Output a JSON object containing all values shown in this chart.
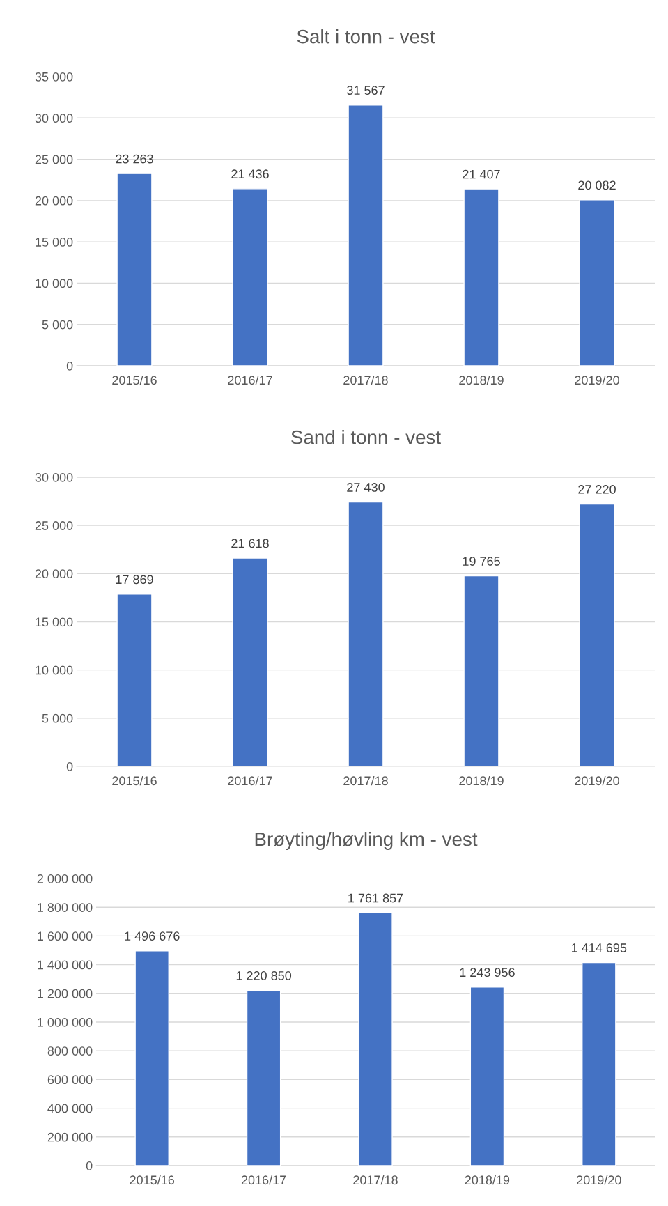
{
  "chart_data": [
    {
      "type": "bar",
      "title": "Salt i tonn - vest",
      "categories": [
        "2015/16",
        "2016/17",
        "2017/18",
        "2018/19",
        "2019/20"
      ],
      "values": [
        23263,
        21436,
        31567,
        21407,
        20082
      ],
      "color": "#4472c4",
      "value_labels": [
        "23 263",
        "21 436",
        "31 567",
        "21 407",
        "20 082"
      ],
      "ylim": [
        0,
        35000
      ],
      "yticks": [
        0,
        {
          "value": 5000,
          "label": "5 000"
        },
        {
          "value": 10000,
          "label": "10 000"
        },
        {
          "value": 15000,
          "label": "15 000"
        },
        {
          "value": 20000,
          "label": "20 000"
        },
        {
          "value": 25000,
          "label": "25 000"
        },
        {
          "value": 30000,
          "label": "30 000"
        },
        {
          "value": 35000,
          "label": "35 000"
        }
      ],
      "grid": "y"
    },
    {
      "type": "bar",
      "title": "Sand i tonn - vest",
      "categories": [
        "2015/16",
        "2016/17",
        "2017/18",
        "2018/19",
        "2019/20"
      ],
      "values": [
        17869,
        21618,
        27430,
        19765,
        27220
      ],
      "color": "#4472c4",
      "value_labels": [
        "17 869",
        "21 618",
        "27 430",
        "19 765",
        "27 220"
      ],
      "ylim": [
        0,
        30000
      ],
      "yticks": [
        0,
        {
          "value": 5000,
          "label": "5 000"
        },
        {
          "value": 10000,
          "label": "10 000"
        },
        {
          "value": 15000,
          "label": "15 000"
        },
        {
          "value": 20000,
          "label": "20 000"
        },
        {
          "value": 25000,
          "label": "25 000"
        },
        {
          "value": 30000,
          "label": "30 000"
        }
      ],
      "grid": "y"
    },
    {
      "type": "bar",
      "title": "Brøyting/høvling km - vest",
      "categories": [
        "2015/16",
        "2016/17",
        "2017/18",
        "2018/19",
        "2019/20"
      ],
      "values": [
        1496676,
        1220850,
        1761857,
        1243956,
        1414695
      ],
      "color": "#4472c4",
      "value_labels": [
        "1 496 676",
        "1 220 850",
        "1 761 857",
        "1 243 956",
        "1 414 695"
      ],
      "ylim": [
        0,
        2000000
      ],
      "yticks": [
        0,
        {
          "value": 200000,
          "label": "200 000"
        },
        {
          "value": 400000,
          "label": "400 000"
        },
        {
          "value": 600000,
          "label": "600 000"
        },
        {
          "value": 800000,
          "label": "800 000"
        },
        {
          "value": 1000000,
          "label": "1 000 000"
        },
        {
          "value": 1200000,
          "label": "1 200 000"
        },
        {
          "value": 1400000,
          "label": "1 400 000"
        },
        {
          "value": 1600000,
          "label": "1 600 000"
        },
        {
          "value": 1800000,
          "label": "1 800 000"
        },
        {
          "value": 2000000,
          "label": "2 000 000"
        }
      ],
      "grid": "y"
    }
  ]
}
